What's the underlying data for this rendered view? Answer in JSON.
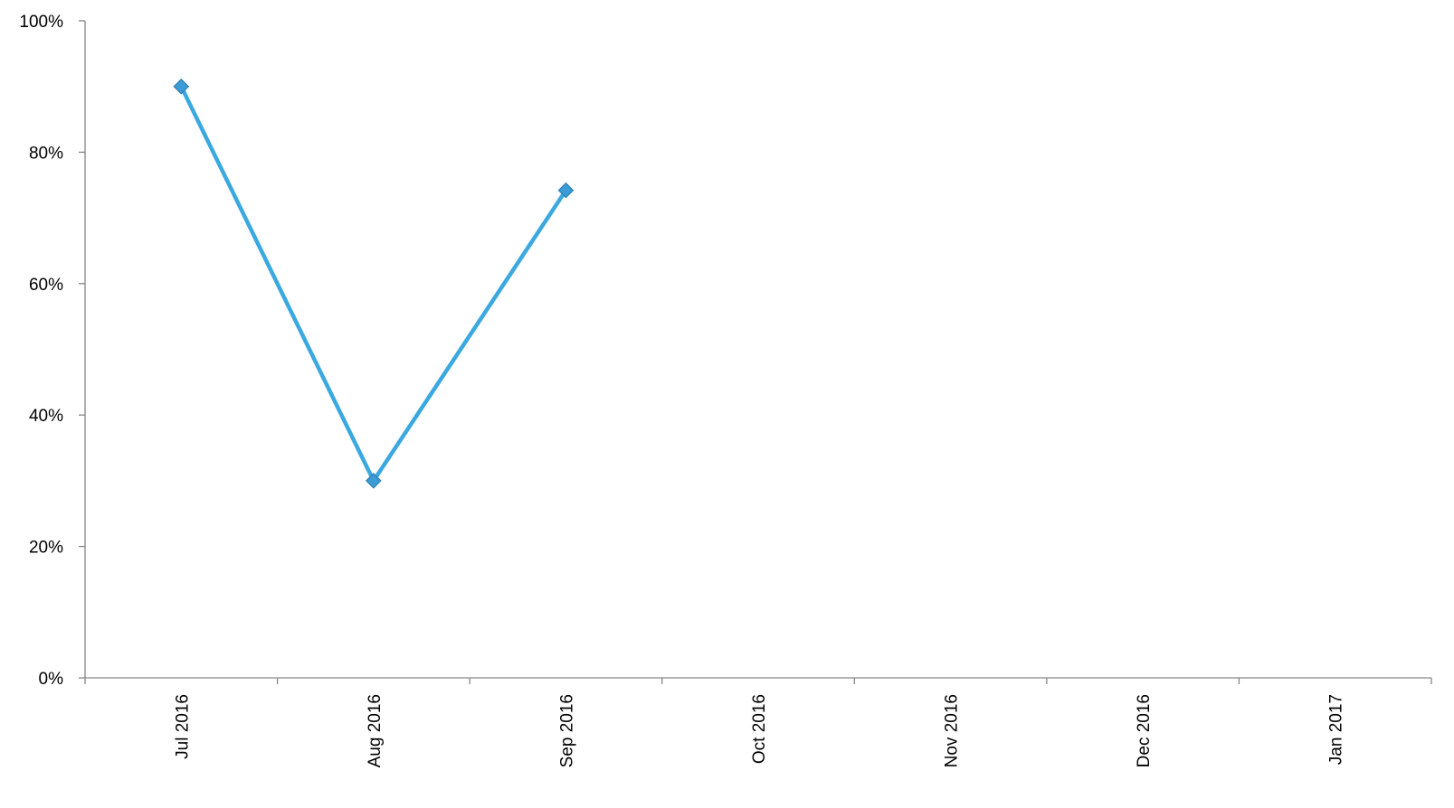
{
  "chart_data": {
    "type": "line",
    "title": "",
    "xlabel": "",
    "ylabel": "",
    "categories": [
      "Jul 2016",
      "Aug 2016",
      "Sep 2016",
      "Oct 2016",
      "Nov 2016",
      "Dec 2016",
      "Jan 2017"
    ],
    "y_tick_labels": [
      "0%",
      "20%",
      "40%",
      "60%",
      "80%",
      "100%"
    ],
    "y_ticks": [
      0,
      20,
      40,
      60,
      80,
      100
    ],
    "ylim": [
      0,
      100
    ],
    "y_unit": "%",
    "grid": false,
    "legend": "none",
    "series": [
      {
        "values": [
          90,
          30,
          74.2,
          null,
          null,
          null,
          null
        ],
        "color": "#3BA9DF",
        "marker": "diamond",
        "marker_color": "#3A9BD5"
      }
    ]
  }
}
